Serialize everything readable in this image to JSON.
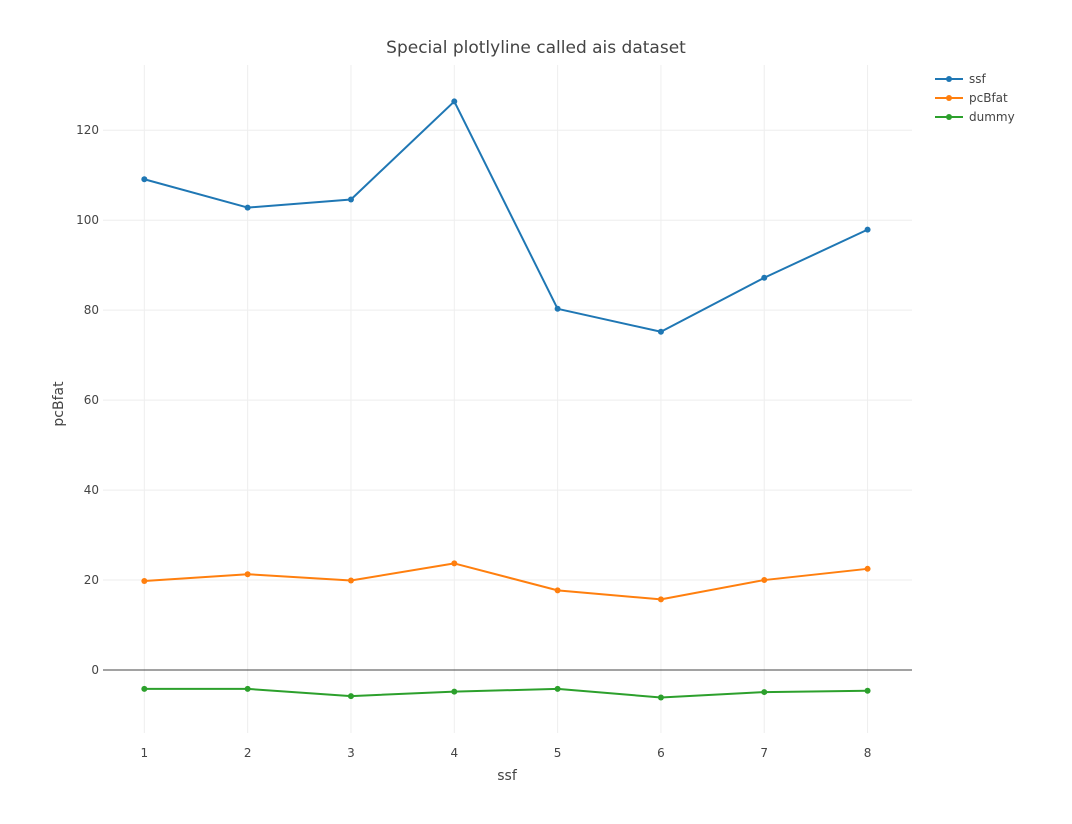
{
  "chart_data": {
    "type": "line",
    "title": "Special plotlyline called ais dataset",
    "xlabel": "ssf",
    "ylabel": "pcBfat",
    "x": [
      1,
      2,
      3,
      4,
      5,
      6,
      7,
      8
    ],
    "xticks": [
      1,
      2,
      3,
      4,
      5,
      6,
      7,
      8
    ],
    "yticks": [
      0,
      20,
      40,
      60,
      80,
      100,
      120
    ],
    "xlim": [
      0.6,
      8.43
    ],
    "ylim": [
      -14,
      134.5
    ],
    "grid": true,
    "legend_position": "top-right",
    "series": [
      {
        "name": "ssf",
        "color": "#1f77b4",
        "values": [
          109.1,
          102.8,
          104.6,
          126.4,
          80.3,
          75.2,
          87.2,
          97.9
        ]
      },
      {
        "name": "pcBfat",
        "color": "#ff7f0e",
        "values": [
          19.8,
          21.3,
          19.9,
          23.7,
          17.7,
          15.7,
          20.0,
          22.5
        ]
      },
      {
        "name": "dummy",
        "color": "#2ca02c",
        "values": [
          -4.2,
          -4.2,
          -5.8,
          -4.8,
          -4.2,
          -6.1,
          -4.9,
          -4.6
        ]
      }
    ]
  }
}
